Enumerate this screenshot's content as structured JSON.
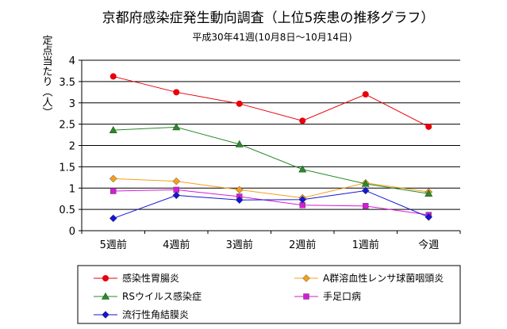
{
  "chart_data": {
    "type": "line",
    "title": "京都府感染症発生動向調査（上位5疾患の推移グラフ）",
    "subtitle": "平成30年41週(10月8日～10月14日)",
    "ylabel": "定点当たり（人）",
    "xlabel": "",
    "categories": [
      "5週前",
      "4週前",
      "3週前",
      "2週前",
      "1週前",
      "今週"
    ],
    "ylim": [
      0,
      4
    ],
    "yticks": [
      "0",
      "0.5",
      "1",
      "1.5",
      "2",
      "2.5",
      "3",
      "3.5",
      "4"
    ],
    "grid": true,
    "legend_position": "bottom",
    "series": [
      {
        "name": "感染性胃腸炎",
        "color": "#e8000b",
        "marker": "circle",
        "values": [
          3.62,
          3.25,
          2.98,
          2.58,
          3.2,
          2.44
        ]
      },
      {
        "name": "A群溶血性レンサ球菌咽頭炎",
        "color": "#f5a01a",
        "marker": "diamond",
        "values": [
          1.22,
          1.16,
          0.96,
          0.77,
          1.12,
          0.91
        ]
      },
      {
        "name": "RSウイルス感染症",
        "color": "#2a8a2a",
        "marker": "triangle",
        "values": [
          2.36,
          2.43,
          2.03,
          1.44,
          1.1,
          0.87
        ]
      },
      {
        "name": "手足口病",
        "color": "#d61bd6",
        "marker": "square",
        "values": [
          0.93,
          0.96,
          0.8,
          0.6,
          0.58,
          0.37
        ]
      },
      {
        "name": "流行性角結膜炎",
        "color": "#1515d6",
        "marker": "diamond",
        "values": [
          0.29,
          0.83,
          0.72,
          0.73,
          0.94,
          0.32
        ]
      }
    ]
  }
}
